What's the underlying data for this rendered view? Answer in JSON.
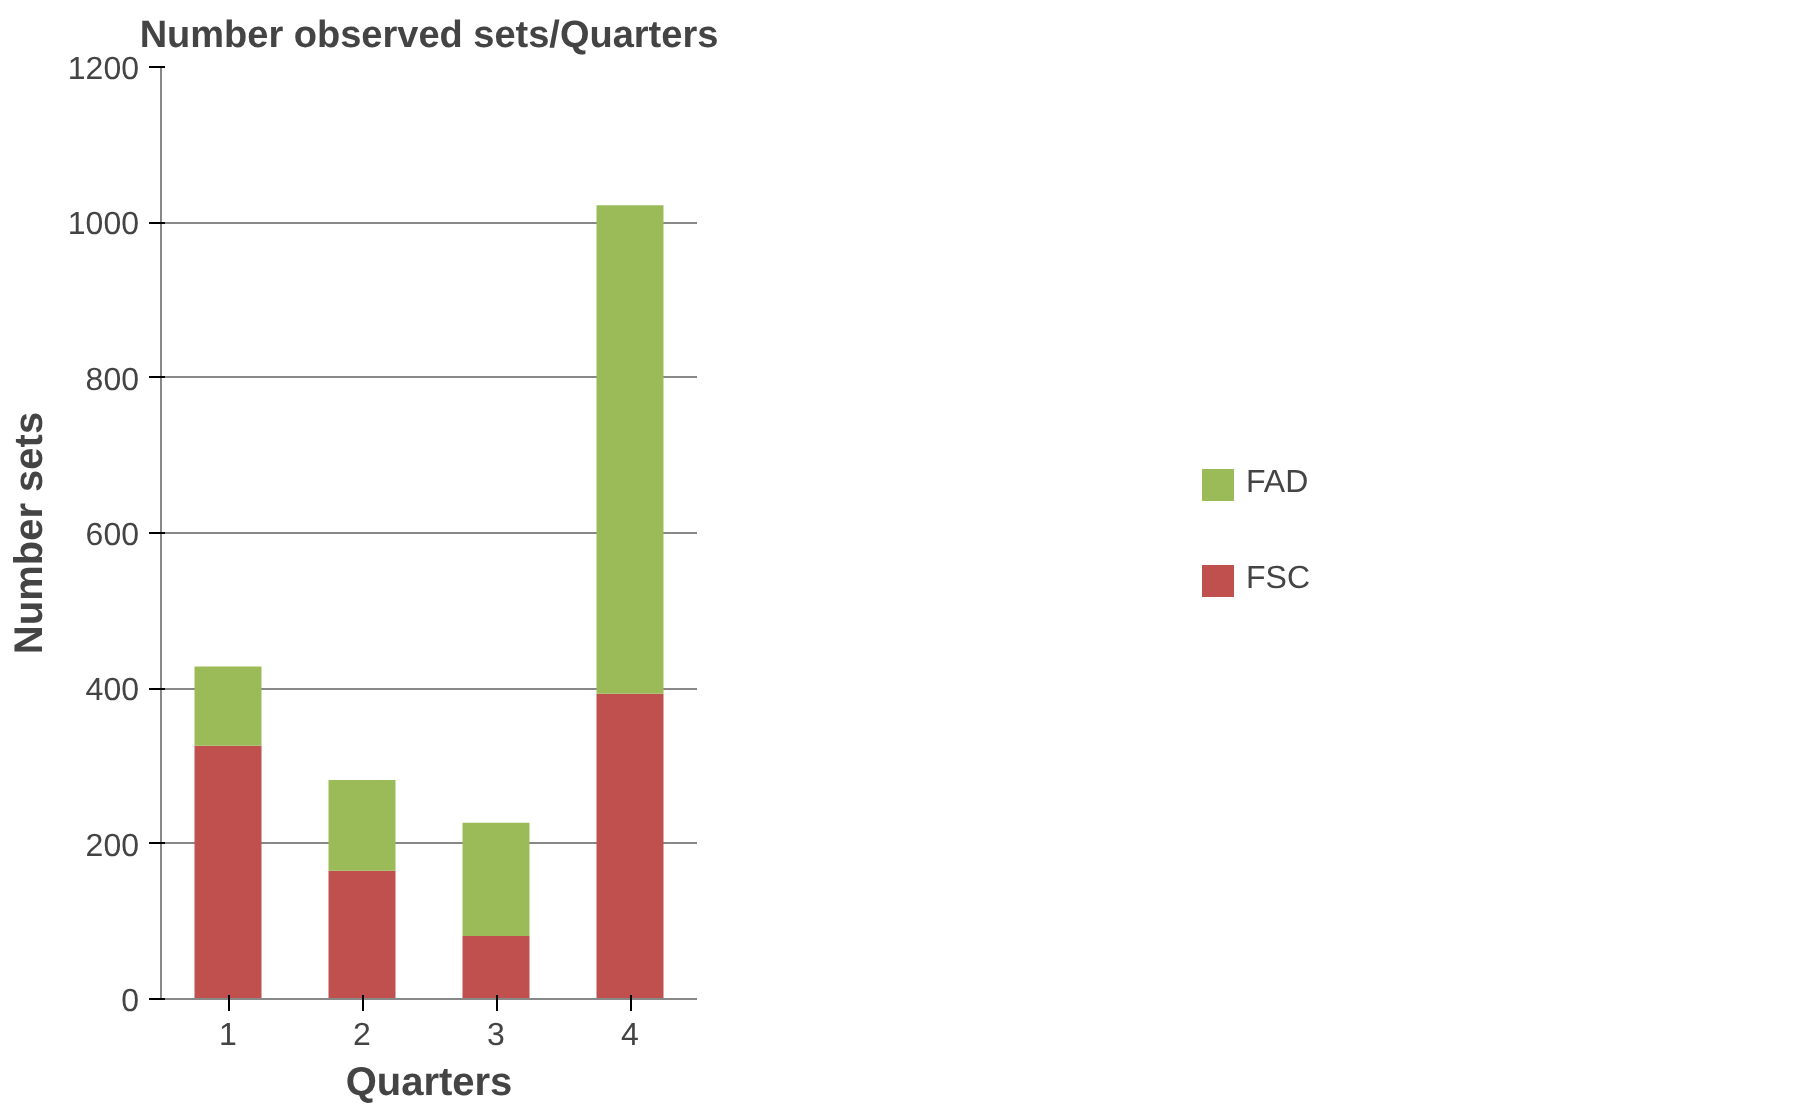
{
  "chart_data": {
    "type": "bar",
    "title": "Number observed sets/Quarters",
    "xlabel": "Quarters",
    "ylabel": "Number sets",
    "categories": [
      "1",
      "2",
      "3",
      "4"
    ],
    "stacked": true,
    "series": [
      {
        "name": "FSC",
        "color": "#c0504d",
        "values": [
          326,
          165,
          81,
          393
        ]
      },
      {
        "name": "FAD",
        "color": "#9bbb59",
        "values": [
          102,
          117,
          146,
          629
        ]
      }
    ],
    "ylim": [
      0,
      1200
    ],
    "yticks": [
      0,
      200,
      400,
      600,
      800,
      1000,
      1200
    ],
    "grid": "y",
    "legend": "right"
  }
}
